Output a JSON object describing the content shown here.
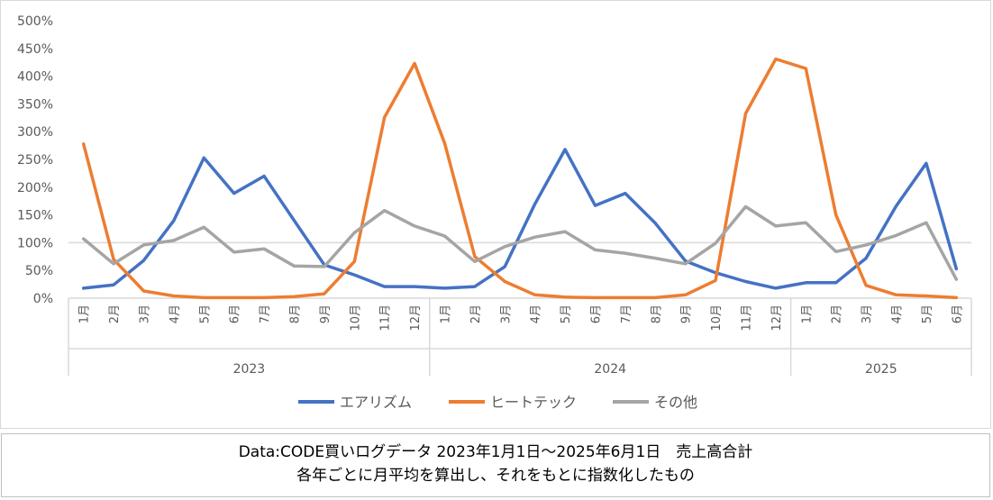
{
  "chart_data": {
    "type": "line",
    "months": [
      "1月",
      "2月",
      "3月",
      "4月",
      "5月",
      "6月",
      "7月",
      "8月",
      "9月",
      "10月",
      "11月",
      "12月",
      "1月",
      "2月",
      "3月",
      "4月",
      "5月",
      "6月",
      "7月",
      "8月",
      "9月",
      "10月",
      "11月",
      "12月",
      "1月",
      "2月",
      "3月",
      "4月",
      "5月",
      "6月"
    ],
    "years": [
      {
        "label": "2023",
        "count": 12
      },
      {
        "label": "2024",
        "count": 12
      },
      {
        "label": "2025",
        "count": 6
      }
    ],
    "y_ticks": [
      "0%",
      "50%",
      "100%",
      "150%",
      "200%",
      "250%",
      "300%",
      "350%",
      "400%",
      "450%",
      "500%"
    ],
    "ylim": [
      0,
      500
    ],
    "reference_line": 100,
    "series": [
      {
        "name": "エアリズム",
        "color": "#4472c4",
        "values": [
          18,
          24,
          68,
          140,
          253,
          189,
          220,
          140,
          60,
          42,
          21,
          21,
          18,
          21,
          57,
          170,
          268,
          167,
          189,
          135,
          67,
          46,
          30,
          18,
          28,
          28,
          72,
          166,
          243,
          53
        ]
      },
      {
        "name": "ヒートテック",
        "color": "#ed7d31",
        "values": [
          278,
          70,
          13,
          4,
          1,
          1,
          1,
          3,
          8,
          66,
          326,
          423,
          279,
          75,
          30,
          6,
          2,
          1,
          1,
          1,
          6,
          32,
          333,
          431,
          414,
          150,
          23,
          6,
          4,
          1
        ]
      },
      {
        "name": "その他",
        "color": "#a5a5a5",
        "values": [
          107,
          62,
          96,
          104,
          128,
          83,
          89,
          58,
          57,
          118,
          158,
          130,
          112,
          66,
          93,
          110,
          120,
          87,
          81,
          72,
          62,
          99,
          165,
          130,
          136,
          84,
          96,
          113,
          136,
          34
        ]
      }
    ]
  },
  "caption": {
    "line1": "Data:CODE買いログデータ 2023年1月1日～2025年6月1日　売上高合計",
    "line2": "各年ごとに月平均を算出し、それをもとに指数化したもの"
  }
}
